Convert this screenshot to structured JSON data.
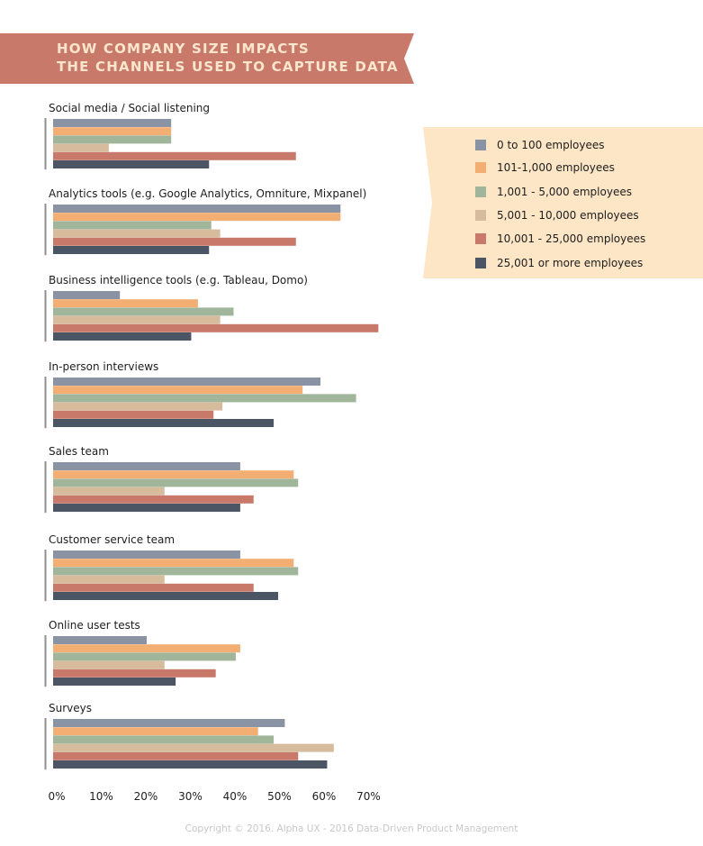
{
  "banner": {
    "line1": "HOW COMPANY SIZE IMPACTS",
    "line2": "THE CHANNELS USED TO CAPTURE DATA",
    "color": "#c8796a",
    "text_color": "#fbe6cd"
  },
  "legend": {
    "background": "#fde6c6",
    "items": [
      {
        "label": "0 to 100 employees",
        "color": "#8a93a3"
      },
      {
        "label": "101-1,000 employees",
        "color": "#f3ae74"
      },
      {
        "label": "1,001 - 5,000 employees",
        "color": "#a1b59b"
      },
      {
        "label": "5,001 - 10,000 employees",
        "color": "#d6bb9c"
      },
      {
        "label": "10,001 - 25,000 employees",
        "color": "#c8796a"
      },
      {
        "label": "25,001 or more employees",
        "color": "#4b5563"
      }
    ]
  },
  "chart_data": {
    "type": "bar",
    "orientation": "horizontal",
    "title": "HOW COMPANY SIZE IMPACTS THE CHANNELS USED TO CAPTURE DATA",
    "xlabel": "",
    "ylabel": "",
    "xlim": [
      0,
      70
    ],
    "x_ticks": [
      "0%",
      "10%",
      "20%",
      "30%",
      "40%",
      "50%",
      "60%",
      "70%"
    ],
    "grid": false,
    "legend_position": "right",
    "categories": [
      "Social media / Social listening",
      "Analytics tools (e.g. Google Analytics, Omniture, Mixpanel)",
      "Business intelligence tools (e.g. Tableau, Domo)",
      "In-person interviews",
      "Sales team",
      "Customer service team",
      "Online user tests",
      "Surveys"
    ],
    "series": [
      {
        "name": "0 to 100 employees",
        "color": "#8a93a3",
        "values": [
          26.5,
          64.5,
          15,
          60,
          42,
          42,
          21,
          52
        ]
      },
      {
        "name": "101-1,000 employees",
        "color": "#f3ae74",
        "values": [
          26.5,
          64.5,
          32.5,
          56,
          54,
          54,
          42,
          46
        ]
      },
      {
        "name": "1,001 - 5,000 employees",
        "color": "#a1b59b",
        "values": [
          26.5,
          35.5,
          40.5,
          68,
          55,
          55,
          41,
          49.5
        ]
      },
      {
        "name": "5,001 - 10,000 employees",
        "color": "#d6bb9c",
        "values": [
          12.5,
          37.5,
          37.5,
          38,
          25,
          25,
          25,
          63
        ]
      },
      {
        "name": "10,001 - 25,000 employees",
        "color": "#c8796a",
        "values": [
          54.5,
          54.5,
          73,
          36,
          45,
          45,
          36.5,
          55
        ]
      },
      {
        "name": "25,001 or more employees",
        "color": "#4b5563",
        "values": [
          35,
          35,
          31,
          49.5,
          42,
          50.5,
          27.5,
          61.5
        ]
      }
    ]
  },
  "footer": {
    "copyright": "Copyright © 2016. Alpha UX - 2016 Data-Driven Product Management"
  }
}
